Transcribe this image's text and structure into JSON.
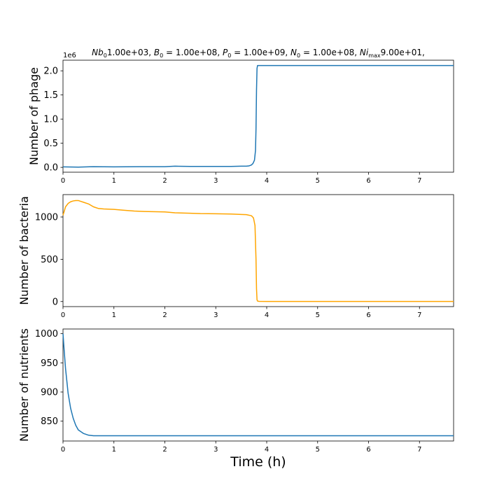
{
  "figure": {
    "title_parts": [
      {
        "t": "Nb",
        "style": "italic"
      },
      {
        "t": "0",
        "style": "sub"
      },
      {
        "t": "1.00e+03, ",
        "style": "normal"
      },
      {
        "t": "B",
        "style": "italic"
      },
      {
        "t": "0",
        "style": "sub"
      },
      {
        "t": " = 1.00e+08, ",
        "style": "normal"
      },
      {
        "t": "P",
        "style": "italic"
      },
      {
        "t": "0",
        "style": "sub"
      },
      {
        "t": " = 1.00e+09, ",
        "style": "normal"
      },
      {
        "t": "N",
        "style": "italic"
      },
      {
        "t": "0",
        "style": "sub"
      },
      {
        "t": " = 1.00e+08, ",
        "style": "normal"
      },
      {
        "t": "Ni",
        "style": "italic"
      },
      {
        "t": "max",
        "style": "sub"
      },
      {
        "t": "9.00e+01,",
        "style": "normal"
      }
    ],
    "xlabel": "Time (h)"
  },
  "chart_data": [
    {
      "type": "line",
      "ylabel": "Number of phage",
      "offset_text": "1e6",
      "xlim": [
        0,
        7.67
      ],
      "ylim": [
        -0.1,
        2.22
      ],
      "xticks": [
        0,
        1,
        2,
        3,
        4,
        5,
        6,
        7
      ],
      "xtick_labels": [
        "0",
        "1",
        "2",
        "3",
        "4",
        "5",
        "6",
        "7"
      ],
      "yticks": [
        0.0,
        0.5,
        1.0,
        1.5,
        2.0
      ],
      "ytick_labels": [
        "0.0",
        "0.5",
        "1.0",
        "1.5",
        "2.0"
      ],
      "grid": false,
      "series": [
        {
          "color": "#1f77b4",
          "x": [
            0,
            0.3,
            0.6,
            1.0,
            1.5,
            2.0,
            2.2,
            2.5,
            3.0,
            3.3,
            3.5,
            3.6,
            3.65,
            3.7,
            3.73,
            3.76,
            3.78,
            3.79,
            3.8,
            3.81,
            3.82,
            3.84,
            3.9,
            4.5,
            5.5,
            6.5,
            7.67
          ],
          "y": [
            0.01,
            0.005,
            0.015,
            0.01,
            0.015,
            0.015,
            0.025,
            0.02,
            0.02,
            0.02,
            0.025,
            0.025,
            0.03,
            0.05,
            0.08,
            0.15,
            0.35,
            0.8,
            1.6,
            2.05,
            2.11,
            2.11,
            2.11,
            2.11,
            2.11,
            2.11,
            2.11
          ]
        }
      ]
    },
    {
      "type": "line",
      "ylabel": "Number of bacteria",
      "xlim": [
        0,
        7.67
      ],
      "ylim": [
        -60,
        1265
      ],
      "xticks": [
        0,
        1,
        2,
        3,
        4,
        5,
        6,
        7
      ],
      "xtick_labels": [
        "0",
        "1",
        "2",
        "3",
        "4",
        "5",
        "6",
        "7"
      ],
      "yticks": [
        0,
        500,
        1000
      ],
      "ytick_labels": [
        "0",
        "500",
        "1000"
      ],
      "grid": false,
      "series": [
        {
          "color": "#ffa500",
          "x": [
            0,
            0.02,
            0.05,
            0.1,
            0.15,
            0.2,
            0.25,
            0.3,
            0.35,
            0.4,
            0.5,
            0.6,
            0.7,
            0.8,
            1.0,
            1.2,
            1.4,
            1.6,
            2.0,
            2.2,
            2.5,
            2.7,
            3.0,
            3.3,
            3.5,
            3.6,
            3.7,
            3.74,
            3.77,
            3.79,
            3.8,
            3.81,
            3.82,
            3.85,
            4.0,
            5.0,
            6.0,
            7.67
          ],
          "y": [
            1020,
            1060,
            1120,
            1160,
            1180,
            1190,
            1195,
            1195,
            1185,
            1175,
            1155,
            1120,
            1100,
            1095,
            1090,
            1080,
            1070,
            1065,
            1060,
            1050,
            1045,
            1040,
            1038,
            1035,
            1030,
            1028,
            1015,
            990,
            900,
            500,
            150,
            20,
            5,
            2,
            1,
            1,
            1,
            1
          ]
        }
      ]
    },
    {
      "type": "line",
      "ylabel": "Number of nutrients",
      "xlim": [
        0,
        7.67
      ],
      "ylim": [
        816,
        1008
      ],
      "xticks": [
        0,
        1,
        2,
        3,
        4,
        5,
        6,
        7
      ],
      "xtick_labels": [
        "0",
        "1",
        "2",
        "3",
        "4",
        "5",
        "6",
        "7"
      ],
      "yticks": [
        850,
        900,
        950,
        1000
      ],
      "ytick_labels": [
        "850",
        "900",
        "950",
        "1000"
      ],
      "grid": false,
      "series": [
        {
          "color": "#1f77b4",
          "x": [
            0,
            0.02,
            0.05,
            0.08,
            0.1,
            0.15,
            0.2,
            0.25,
            0.3,
            0.4,
            0.5,
            0.6,
            0.8,
            1.0,
            2.0,
            3.0,
            4.0,
            5.0,
            6.0,
            7.67
          ],
          "y": [
            1000,
            975,
            940,
            915,
            898,
            872,
            855,
            843,
            835,
            829,
            826,
            825,
            825,
            825,
            825,
            825,
            825,
            825,
            825,
            825
          ]
        }
      ]
    }
  ]
}
